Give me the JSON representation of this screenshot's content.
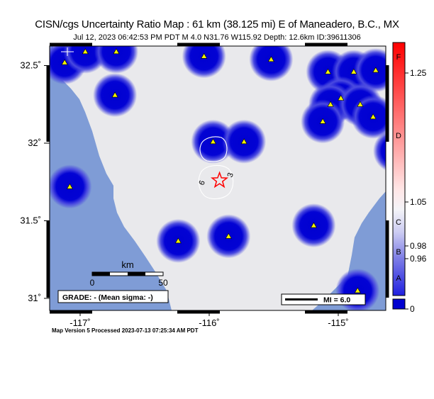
{
  "header": {
    "title": "CISN/cgs Uncertainty Ratio Map : 61 km (38.125 mi) E of Maneadero, B.C., MX",
    "subtitle": "Jul 12, 2023 06:42:53 PM PDT   M 4.0   N31.76 W115.92   Depth: 12.6km   ID:39611306"
  },
  "map": {
    "lon_ticks": [
      {
        "value": -117,
        "label": "-117˚"
      },
      {
        "value": -116,
        "label": "-116˚"
      },
      {
        "value": -115,
        "label": "-115˚"
      }
    ],
    "lat_ticks": [
      {
        "value": 32.5,
        "label": "32.5˚"
      },
      {
        "value": 32,
        "label": "32˚"
      },
      {
        "value": 31.5,
        "label": "31.5˚"
      },
      {
        "value": 31,
        "label": "31˚"
      }
    ],
    "epicenter": {
      "lon": -115.92,
      "lat": 31.76
    },
    "stations": [
      {
        "lon": -117.12,
        "lat": 32.52
      },
      {
        "lon": -116.96,
        "lat": 32.59
      },
      {
        "lon": -116.72,
        "lat": 32.59
      },
      {
        "lon": -116.04,
        "lat": 32.56
      },
      {
        "lon": -115.52,
        "lat": 32.54
      },
      {
        "lon": -115.08,
        "lat": 32.46
      },
      {
        "lon": -114.88,
        "lat": 32.46
      },
      {
        "lon": -114.71,
        "lat": 32.47
      },
      {
        "lon": -114.42,
        "lat": 32.48
      },
      {
        "lon": -116.73,
        "lat": 32.31
      },
      {
        "lon": -114.98,
        "lat": 32.29
      },
      {
        "lon": -115.06,
        "lat": 32.25
      },
      {
        "lon": -114.83,
        "lat": 32.25
      },
      {
        "lon": -115.12,
        "lat": 32.14
      },
      {
        "lon": -114.73,
        "lat": 32.17
      },
      {
        "lon": -115.97,
        "lat": 32.01
      },
      {
        "lon": -115.73,
        "lat": 32.01
      },
      {
        "lon": -114.56,
        "lat": 31.95
      },
      {
        "lon": -117.08,
        "lat": 31.72
      },
      {
        "lon": -115.19,
        "lat": 31.47
      },
      {
        "lon": -116.24,
        "lat": 31.37
      },
      {
        "lon": -115.85,
        "lat": 31.4
      },
      {
        "lon": -114.85,
        "lat": 31.05
      }
    ],
    "contour_labels": {
      "left": "6",
      "right": "3"
    },
    "scale_bar": {
      "unit": "km",
      "start": "0",
      "end": "50"
    },
    "grade": "GRADE: - (Mean sigma: -)",
    "mi_legend": "MI = 6.0",
    "colors": {
      "land": "#e9e9ec",
      "ocean": "#7f9cd6",
      "blob": "#0a0ad6",
      "station": "#f0f000",
      "epicenter": "#ff0000"
    }
  },
  "colorbar": {
    "letters": [
      "F",
      "D",
      "C",
      "B",
      "A"
    ],
    "values": [
      "1.25",
      "1.05",
      "0.98",
      "0.96",
      "0"
    ],
    "colors": {
      "top": "#ff0000",
      "mid": "#f4f4f8",
      "bottom": "#1010e0"
    }
  },
  "footer": {
    "processed": "Map Version 5 Processed 2023-07-13 07:25:34 AM PDT"
  }
}
